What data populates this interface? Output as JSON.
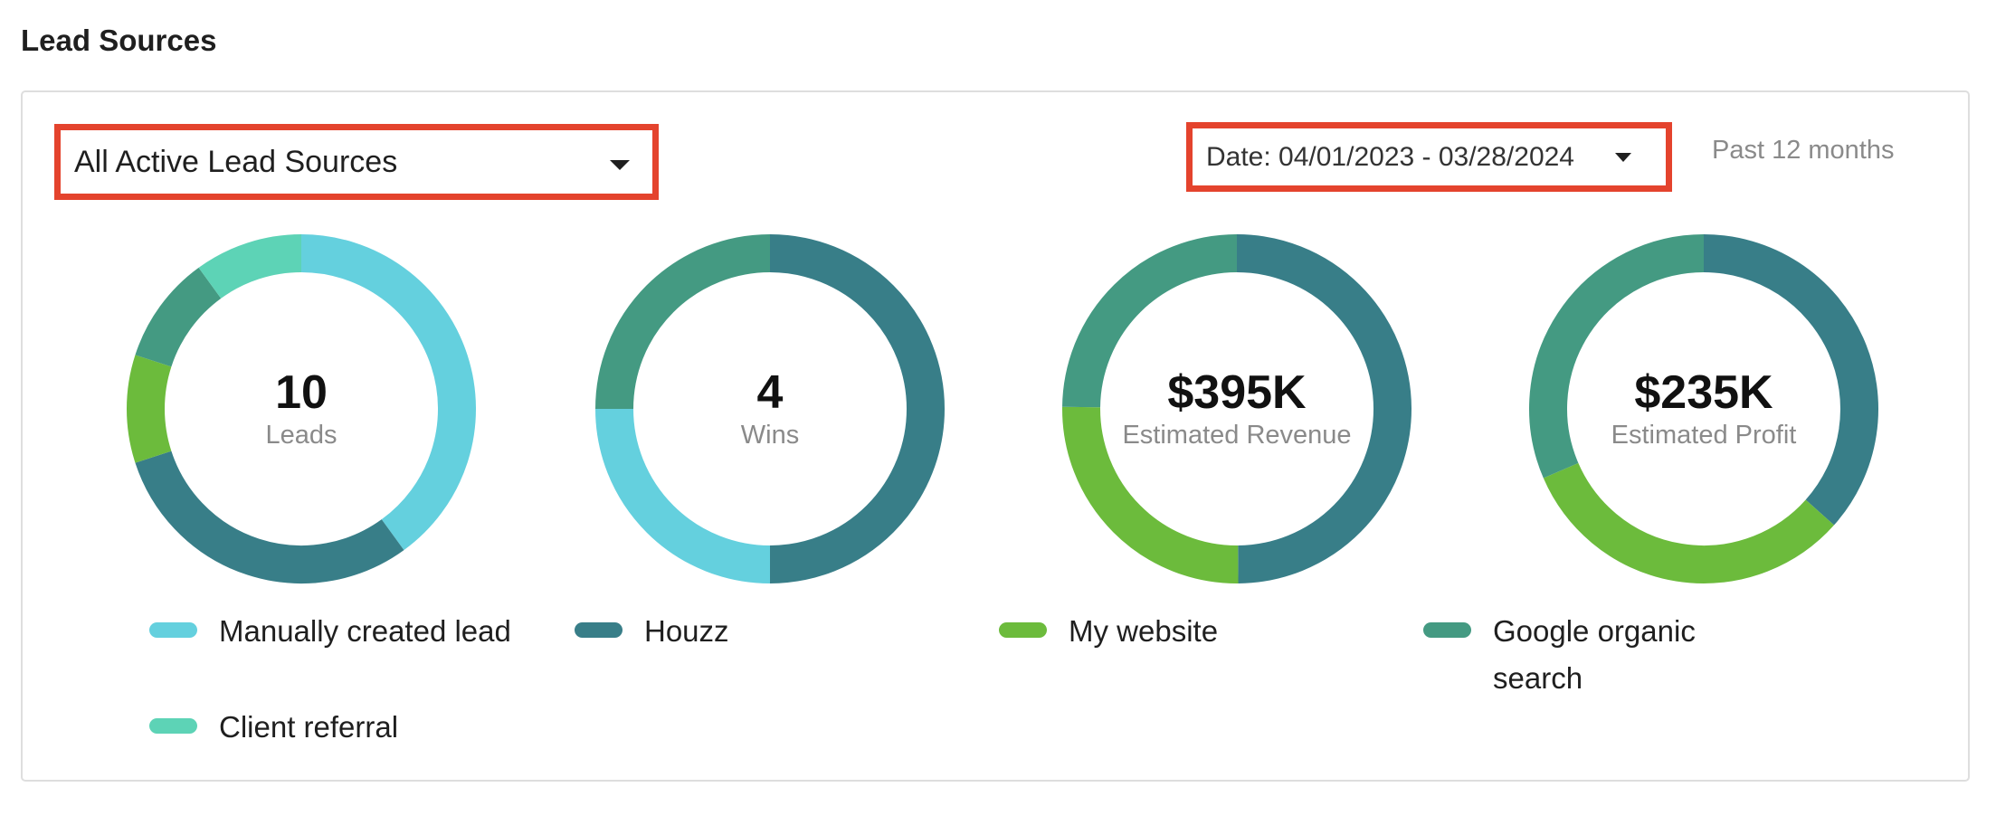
{
  "header": {
    "title": "Lead Sources"
  },
  "filters": {
    "source_select": "All Active Lead Sources",
    "date_select": "Date: 04/01/2023 - 03/28/2024",
    "period_label": "Past 12 months"
  },
  "colors": {
    "Manually created lead": "#64d0de",
    "Houzz": "#387e88",
    "My website": "#6cbb3c",
    "Google organic search": "#449a82",
    "Client referral": "#5dd3b6",
    "highlight_border": "#e4432d"
  },
  "chart_data": [
    {
      "type": "pie",
      "donut": true,
      "center_value": "10",
      "center_label": "Leads",
      "series": [
        {
          "name": "Manually created lead",
          "value": 4
        },
        {
          "name": "Houzz",
          "value": 3
        },
        {
          "name": "My website",
          "value": 1
        },
        {
          "name": "Google organic search",
          "value": 1
        },
        {
          "name": "Client referral",
          "value": 1
        }
      ]
    },
    {
      "type": "pie",
      "donut": true,
      "center_value": "4",
      "center_label": "Wins",
      "series": [
        {
          "name": "Houzz",
          "value": 2
        },
        {
          "name": "Manually created lead",
          "value": 1
        },
        {
          "name": "Google organic search",
          "value": 1
        }
      ]
    },
    {
      "type": "pie",
      "donut": true,
      "center_value": "$395K",
      "center_label": "Estimated Revenue",
      "series": [
        {
          "name": "Houzz",
          "value": 197
        },
        {
          "name": "My website",
          "value": 100
        },
        {
          "name": "Google organic search",
          "value": 98
        }
      ]
    },
    {
      "type": "pie",
      "donut": true,
      "center_value": "$235K",
      "center_label": "Estimated Profit",
      "series": [
        {
          "name": "Houzz",
          "value": 86
        },
        {
          "name": "My website",
          "value": 75
        },
        {
          "name": "Google organic search",
          "value": 74
        }
      ]
    }
  ],
  "legend": [
    {
      "label": "Manually created lead"
    },
    {
      "label": "Houzz"
    },
    {
      "label": "My website"
    },
    {
      "label": "Google organic\nsearch"
    },
    {
      "label": "Client referral"
    }
  ]
}
